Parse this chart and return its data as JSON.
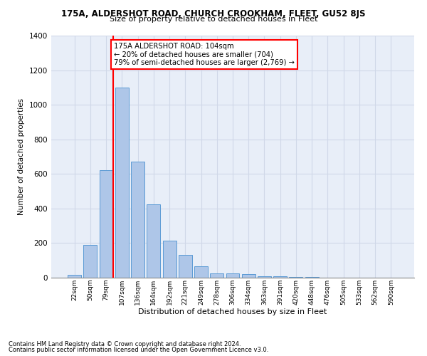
{
  "title_line1": "175A, ALDERSHOT ROAD, CHURCH CROOKHAM, FLEET, GU52 8JS",
  "title_line2": "Size of property relative to detached houses in Fleet",
  "xlabel": "Distribution of detached houses by size in Fleet",
  "ylabel": "Number of detached properties",
  "footnote1": "Contains HM Land Registry data © Crown copyright and database right 2024.",
  "footnote2": "Contains public sector information licensed under the Open Government Licence v3.0.",
  "categories": [
    "22sqm",
    "50sqm",
    "79sqm",
    "107sqm",
    "136sqm",
    "164sqm",
    "192sqm",
    "221sqm",
    "249sqm",
    "278sqm",
    "306sqm",
    "334sqm",
    "363sqm",
    "391sqm",
    "420sqm",
    "448sqm",
    "476sqm",
    "505sqm",
    "533sqm",
    "562sqm",
    "590sqm"
  ],
  "values": [
    15,
    190,
    620,
    1100,
    670,
    425,
    215,
    130,
    65,
    25,
    25,
    20,
    10,
    8,
    5,
    3,
    2,
    1,
    1,
    0,
    0
  ],
  "bar_color": "#aec6e8",
  "bar_edge_color": "#5b9bd5",
  "annotation_box_text": "175A ALDERSHOT ROAD: 104sqm\n← 20% of detached houses are smaller (704)\n79% of semi-detached houses are larger (2,769) →",
  "red_line_index": 2,
  "ylim": [
    0,
    1400
  ],
  "yticks": [
    0,
    200,
    400,
    600,
    800,
    1000,
    1200,
    1400
  ],
  "grid_color": "#d0d8e8",
  "background_color": "#e8eef8"
}
